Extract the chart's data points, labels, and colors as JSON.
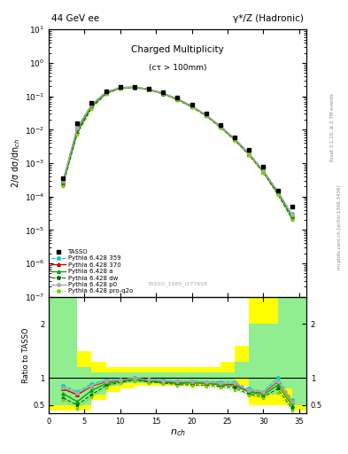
{
  "title_left": "44 GeV ee",
  "title_right": "γ*/Z (Hadronic)",
  "plot_title": "Charged Multiplicity",
  "plot_subtitle": "(cτ > 100mm)",
  "ylabel_main": "2/σ dσ/dn_{ch}",
  "ylabel_ratio": "Ratio to TASSO",
  "watermark": "TASSO_1989_I277658",
  "rivet_text": "Rivet 3.1.10, ≥ 2.7M events",
  "arxiv_text": "mcplots.cern.ch [arXiv:1306.3436]",
  "tasso_x": [
    2,
    4,
    6,
    8,
    10,
    12,
    14,
    16,
    18,
    20,
    22,
    24,
    26,
    28,
    30,
    32,
    34
  ],
  "tasso_y": [
    0.00035,
    0.016,
    0.065,
    0.14,
    0.19,
    0.19,
    0.17,
    0.13,
    0.09,
    0.055,
    0.03,
    0.014,
    0.006,
    0.0025,
    0.0008,
    0.00015,
    5e-05
  ],
  "py359_x": [
    2,
    4,
    6,
    8,
    10,
    12,
    14,
    16,
    18,
    20,
    22,
    24,
    26,
    28,
    30,
    32,
    34
  ],
  "py359_y": [
    0.0003,
    0.012,
    0.058,
    0.135,
    0.185,
    0.19,
    0.165,
    0.125,
    0.085,
    0.052,
    0.028,
    0.013,
    0.0055,
    0.002,
    0.0006,
    0.00015,
    3e-05
  ],
  "py370_x": [
    2,
    4,
    6,
    8,
    10,
    12,
    14,
    16,
    18,
    20,
    22,
    24,
    26,
    28,
    30,
    32,
    34
  ],
  "py370_y": [
    0.00028,
    0.011,
    0.055,
    0.13,
    0.182,
    0.188,
    0.163,
    0.122,
    0.083,
    0.051,
    0.0275,
    0.0125,
    0.0053,
    0.0019,
    0.00058,
    0.00014,
    2.8e-05
  ],
  "pya_x": [
    2,
    4,
    6,
    8,
    10,
    12,
    14,
    16,
    18,
    20,
    22,
    24,
    26,
    28,
    30,
    32,
    34
  ],
  "pya_y": [
    0.00025,
    0.009,
    0.05,
    0.125,
    0.178,
    0.185,
    0.16,
    0.12,
    0.081,
    0.05,
    0.027,
    0.0122,
    0.0051,
    0.00185,
    0.00055,
    0.00013,
    2.5e-05
  ],
  "pydw_x": [
    2,
    4,
    6,
    8,
    10,
    12,
    14,
    16,
    18,
    20,
    22,
    24,
    26,
    28,
    30,
    32,
    34
  ],
  "pydw_y": [
    0.00022,
    0.008,
    0.045,
    0.12,
    0.175,
    0.182,
    0.158,
    0.118,
    0.079,
    0.048,
    0.026,
    0.0118,
    0.0049,
    0.00175,
    0.00052,
    0.00012,
    2.2e-05
  ],
  "pyp0_x": [
    2,
    4,
    6,
    8,
    10,
    12,
    14,
    16,
    18,
    20,
    22,
    24,
    26,
    28,
    30,
    32,
    34
  ],
  "pyp0_y": [
    0.00029,
    0.0115,
    0.056,
    0.132,
    0.183,
    0.189,
    0.164,
    0.123,
    0.084,
    0.0515,
    0.0277,
    0.0126,
    0.0054,
    0.00192,
    0.00059,
    0.000142,
    2.85e-05
  ],
  "pyproq2o_x": [
    2,
    4,
    6,
    8,
    10,
    12,
    14,
    16,
    18,
    20,
    22,
    24,
    26,
    28,
    30,
    32,
    34
  ],
  "pyproq2o_y": [
    0.00021,
    0.007,
    0.042,
    0.115,
    0.172,
    0.18,
    0.155,
    0.116,
    0.077,
    0.047,
    0.025,
    0.0115,
    0.0047,
    0.0017,
    0.0005,
    0.00011,
    2e-05
  ],
  "ratio_x": [
    2,
    4,
    6,
    8,
    10,
    12,
    14,
    16,
    18,
    20,
    22,
    24,
    26,
    28,
    30,
    32,
    34
  ],
  "ratio_py359": [
    0.86,
    0.75,
    0.89,
    0.96,
    0.97,
    1.0,
    0.97,
    0.96,
    0.94,
    0.945,
    0.93,
    0.93,
    0.92,
    0.8,
    0.75,
    1.0,
    0.6
  ],
  "ratio_py370": [
    0.8,
    0.69,
    0.85,
    0.929,
    0.958,
    0.99,
    0.96,
    0.939,
    0.922,
    0.927,
    0.917,
    0.893,
    0.883,
    0.76,
    0.725,
    0.933,
    0.56
  ],
  "ratio_pya": [
    0.71,
    0.563,
    0.769,
    0.893,
    0.937,
    0.974,
    0.941,
    0.923,
    0.9,
    0.909,
    0.9,
    0.871,
    0.85,
    0.74,
    0.688,
    0.867,
    0.5
  ],
  "ratio_pydw": [
    0.63,
    0.5,
    0.692,
    0.857,
    0.921,
    0.958,
    0.929,
    0.908,
    0.878,
    0.873,
    0.867,
    0.843,
    0.817,
    0.7,
    0.65,
    0.8,
    0.44
  ],
  "ratio_pyp0": [
    0.83,
    0.719,
    0.862,
    0.943,
    0.963,
    0.995,
    0.965,
    0.946,
    0.933,
    0.936,
    0.923,
    0.9,
    0.9,
    0.768,
    0.738,
    0.947,
    0.57
  ],
  "ratio_pyproq2o": [
    0.6,
    0.438,
    0.646,
    0.821,
    0.905,
    0.947,
    0.912,
    0.892,
    0.856,
    0.855,
    0.833,
    0.821,
    0.783,
    0.68,
    0.625,
    0.733,
    0.4
  ],
  "band_yellow_edges": [
    0,
    2,
    4,
    6,
    8,
    10,
    12,
    14,
    16,
    18,
    20,
    22,
    24,
    26,
    28,
    30,
    32,
    34,
    36
  ],
  "band_yellow_lo": [
    0.4,
    0.4,
    0.4,
    0.6,
    0.75,
    0.8,
    0.85,
    0.85,
    0.85,
    0.85,
    0.85,
    0.85,
    0.85,
    0.85,
    0.5,
    0.5,
    0.5,
    0.4,
    0.4
  ],
  "band_yellow_hi": [
    2.8,
    2.8,
    1.5,
    1.3,
    1.2,
    1.2,
    1.2,
    1.2,
    1.2,
    1.2,
    1.2,
    1.2,
    1.3,
    1.6,
    2.5,
    2.5,
    2.8,
    2.8,
    2.8
  ],
  "band_green_edges": [
    0,
    2,
    4,
    6,
    8,
    10,
    12,
    14,
    16,
    18,
    20,
    22,
    24,
    26,
    28,
    30,
    32,
    34,
    36
  ],
  "band_green_lo": [
    0.5,
    0.5,
    0.5,
    0.7,
    0.85,
    0.9,
    0.9,
    0.9,
    0.9,
    0.9,
    0.9,
    0.9,
    0.9,
    1.0,
    0.7,
    0.7,
    0.8,
    0.5,
    0.5
  ],
  "band_green_hi": [
    2.5,
    2.5,
    1.2,
    1.1,
    1.1,
    1.1,
    1.1,
    1.1,
    1.1,
    1.1,
    1.1,
    1.1,
    1.1,
    1.3,
    2.0,
    2.0,
    2.5,
    2.5,
    2.5
  ],
  "colors": {
    "py359": "#00cccc",
    "py370": "#cc0000",
    "pya": "#00aa00",
    "pydw": "#006600",
    "pyp0": "#aaaaaa",
    "pyproq2o": "#88cc00"
  },
  "xlim": [
    0,
    36
  ],
  "ylim_main": [
    1e-07,
    10
  ],
  "ylim_ratio": [
    0.35,
    2.5
  ]
}
